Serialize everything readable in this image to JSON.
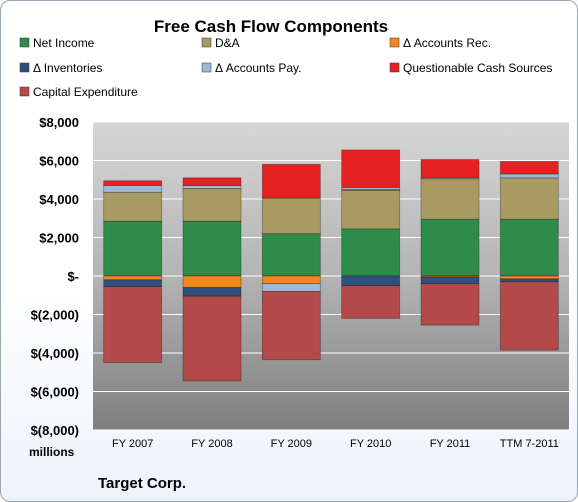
{
  "chart_data": {
    "type": "bar",
    "stacked": true,
    "title": "Free Cash Flow Components",
    "ylabel": "millions",
    "footer": "Target Corp.",
    "ylim": [
      -8000,
      8000
    ],
    "yticks": [
      8000,
      6000,
      4000,
      2000,
      0,
      -2000,
      -4000,
      -6000,
      -8000
    ],
    "ytick_labels": [
      "$8,000",
      "$6,000",
      "$4,000",
      "$2,000",
      "$-",
      "$(2,000)",
      "$(4,000)",
      "$(6,000)",
      "$(8,000)"
    ],
    "categories": [
      "FY 2007",
      "FY 2008",
      "FY 2009",
      "FY 2010",
      "FY 2011",
      "TTM 7-2011"
    ],
    "legend_position": "top",
    "series": [
      {
        "name": "Net Income",
        "color": "#2e8b4a",
        "values": [
          2850,
          2850,
          2200,
          2450,
          2950,
          2950
        ]
      },
      {
        "name": "D&A",
        "color": "#a89a60",
        "values": [
          1500,
          1700,
          1850,
          2000,
          2100,
          2150
        ]
      },
      {
        "name": "Δ Accounts Rec.",
        "color": "#f0861f",
        "values": [
          -200,
          -600,
          -400,
          50,
          -50,
          -150
        ]
      },
      {
        "name": "Δ Inventories",
        "color": "#2f4f7f",
        "values": [
          -350,
          -450,
          0,
          -500,
          -350,
          -150
        ]
      },
      {
        "name": "Δ Accounts Pay.",
        "color": "#9fb8d8",
        "values": [
          350,
          150,
          -400,
          100,
          50,
          200
        ]
      },
      {
        "name": "Questionable Cash Sources",
        "color": "#e52222",
        "values": [
          250,
          400,
          1750,
          1950,
          950,
          650
        ]
      },
      {
        "name": "Capital Expenditure",
        "color": "#b24a4a",
        "values": [
          -3950,
          -4400,
          -3550,
          -1700,
          -2150,
          -3550
        ]
      }
    ]
  }
}
